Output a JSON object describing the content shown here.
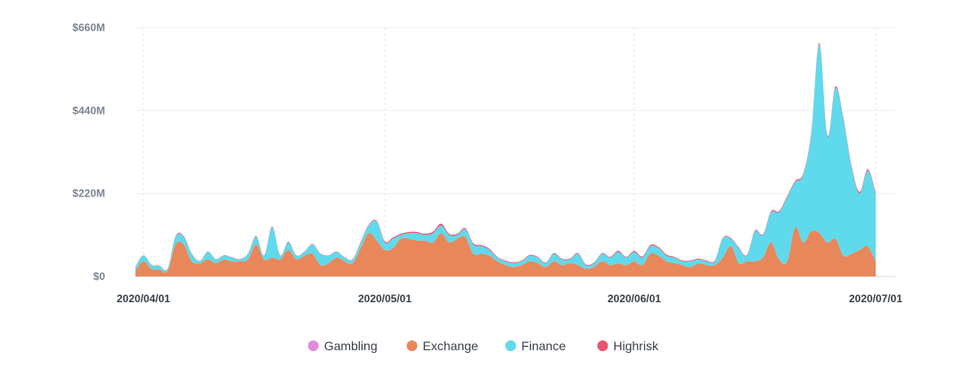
{
  "chart_data": {
    "type": "area",
    "stacked": true,
    "x": [
      "2020-03-31",
      "2020-04-01",
      "2020-04-02",
      "2020-04-03",
      "2020-04-04",
      "2020-04-05",
      "2020-04-06",
      "2020-04-07",
      "2020-04-08",
      "2020-04-09",
      "2020-04-10",
      "2020-04-11",
      "2020-04-12",
      "2020-04-13",
      "2020-04-14",
      "2020-04-15",
      "2020-04-16",
      "2020-04-17",
      "2020-04-18",
      "2020-04-19",
      "2020-04-20",
      "2020-04-21",
      "2020-04-22",
      "2020-04-23",
      "2020-04-24",
      "2020-04-25",
      "2020-04-26",
      "2020-04-27",
      "2020-04-28",
      "2020-04-29",
      "2020-04-30",
      "2020-05-01",
      "2020-05-02",
      "2020-05-03",
      "2020-05-04",
      "2020-05-05",
      "2020-05-06",
      "2020-05-07",
      "2020-05-08",
      "2020-05-09",
      "2020-05-10",
      "2020-05-11",
      "2020-05-12",
      "2020-05-13",
      "2020-05-14",
      "2020-05-15",
      "2020-05-16",
      "2020-05-17",
      "2020-05-18",
      "2020-05-19",
      "2020-05-20",
      "2020-05-21",
      "2020-05-22",
      "2020-05-23",
      "2020-05-24",
      "2020-05-25",
      "2020-05-26",
      "2020-05-27",
      "2020-05-28",
      "2020-05-29",
      "2020-05-30",
      "2020-05-31",
      "2020-06-01",
      "2020-06-02",
      "2020-06-03",
      "2020-06-04",
      "2020-06-05",
      "2020-06-06",
      "2020-06-07",
      "2020-06-08",
      "2020-06-09",
      "2020-06-10",
      "2020-06-11",
      "2020-06-12",
      "2020-06-13",
      "2020-06-14",
      "2020-06-15",
      "2020-06-16",
      "2020-06-17",
      "2020-06-18",
      "2020-06-19",
      "2020-06-20",
      "2020-06-21",
      "2020-06-22",
      "2020-06-23",
      "2020-06-24",
      "2020-06-25",
      "2020-06-26",
      "2020-06-27",
      "2020-06-28",
      "2020-06-29",
      "2020-06-30",
      "2020-07-01"
    ],
    "series": [
      {
        "name": "Gambling",
        "color": "#e38bdb",
        "values": [
          0,
          0,
          0,
          0,
          0,
          0,
          0,
          0,
          0,
          0,
          0,
          0,
          0,
          0,
          0,
          0,
          0,
          0,
          0,
          0,
          0,
          0,
          0,
          0,
          0,
          0,
          0,
          0,
          0,
          0,
          0,
          0,
          0,
          0,
          0,
          0,
          0,
          0,
          0,
          0,
          0,
          0,
          0,
          0,
          0,
          0,
          0,
          0,
          0,
          0,
          0,
          0,
          0,
          0,
          0,
          0,
          0,
          0,
          0,
          0,
          0,
          0,
          0,
          0,
          0,
          0,
          0,
          0,
          0,
          0,
          0,
          0,
          0,
          0,
          0,
          0,
          0,
          0,
          0,
          0,
          0,
          0,
          0,
          0,
          0,
          0,
          0,
          0,
          0,
          0,
          0,
          0,
          0
        ]
      },
      {
        "name": "Exchange",
        "color": "#e8875a",
        "values": [
          15,
          40,
          20,
          18,
          15,
          85,
          85,
          40,
          35,
          45,
          35,
          45,
          40,
          40,
          45,
          85,
          45,
          50,
          45,
          70,
          45,
          55,
          60,
          30,
          35,
          50,
          40,
          35,
          75,
          115,
          95,
          70,
          75,
          100,
          100,
          95,
          95,
          90,
          115,
          90,
          100,
          105,
          60,
          60,
          55,
          40,
          30,
          25,
          30,
          40,
          35,
          25,
          40,
          30,
          35,
          30,
          20,
          25,
          40,
          30,
          35,
          30,
          40,
          30,
          60,
          55,
          40,
          35,
          30,
          25,
          35,
          30,
          30,
          50,
          80,
          35,
          40,
          40,
          50,
          90,
          45,
          40,
          130,
          90,
          120,
          115,
          90,
          100,
          55,
          60,
          70,
          80,
          40
        ]
      },
      {
        "name": "Finance",
        "color": "#5fd9ec",
        "values": [
          10,
          15,
          10,
          10,
          5,
          20,
          20,
          20,
          5,
          20,
          10,
          10,
          10,
          5,
          15,
          20,
          10,
          80,
          10,
          20,
          10,
          10,
          25,
          30,
          20,
          15,
          10,
          10,
          15,
          20,
          50,
          20,
          25,
          10,
          15,
          20,
          15,
          25,
          20,
          20,
          10,
          20,
          25,
          20,
          15,
          10,
          10,
          10,
          10,
          15,
          15,
          10,
          20,
          15,
          10,
          30,
          10,
          10,
          20,
          20,
          30,
          20,
          25,
          20,
          20,
          20,
          15,
          15,
          10,
          15,
          10,
          10,
          10,
          50,
          20,
          40,
          15,
          80,
          60,
          80,
          125,
          170,
          120,
          180,
          260,
          500,
          280,
          400,
          360,
          230,
          150,
          200,
          180
        ]
      },
      {
        "name": "Highrisk",
        "color": "#e9566e",
        "values": [
          1,
          1,
          1,
          1,
          1,
          2,
          2,
          1,
          1,
          1,
          1,
          1,
          1,
          1,
          1,
          2,
          1,
          2,
          1,
          2,
          1,
          1,
          1,
          1,
          1,
          1,
          1,
          1,
          2,
          2,
          2,
          3,
          3,
          3,
          3,
          3,
          3,
          4,
          5,
          3,
          3,
          3,
          3,
          3,
          3,
          2,
          2,
          2,
          2,
          2,
          2,
          2,
          2,
          2,
          2,
          2,
          2,
          2,
          2,
          2,
          3,
          2,
          3,
          3,
          3,
          3,
          3,
          2,
          2,
          2,
          2,
          2,
          2,
          2,
          2,
          2,
          2,
          2,
          2,
          3,
          3,
          3,
          3,
          3,
          4,
          4,
          4,
          4,
          4,
          4,
          4,
          4,
          4
        ]
      }
    ],
    "ylim": [
      0,
      660
    ],
    "yticks": [
      {
        "value": 0,
        "label": "$0"
      },
      {
        "value": 220,
        "label": "$220M"
      },
      {
        "value": 440,
        "label": "$440M"
      },
      {
        "value": 660,
        "label": "$660M"
      }
    ],
    "xticks": [
      {
        "value": "2020-04-01",
        "label": "2020/04/01"
      },
      {
        "value": "2020-05-01",
        "label": "2020/05/01"
      },
      {
        "value": "2020-06-01",
        "label": "2020/06/01"
      },
      {
        "value": "2020-07-01",
        "label": "2020/07/01"
      }
    ],
    "title": "",
    "xlabel": "",
    "ylabel": "",
    "grid": true,
    "legend_position": "bottom-center"
  }
}
